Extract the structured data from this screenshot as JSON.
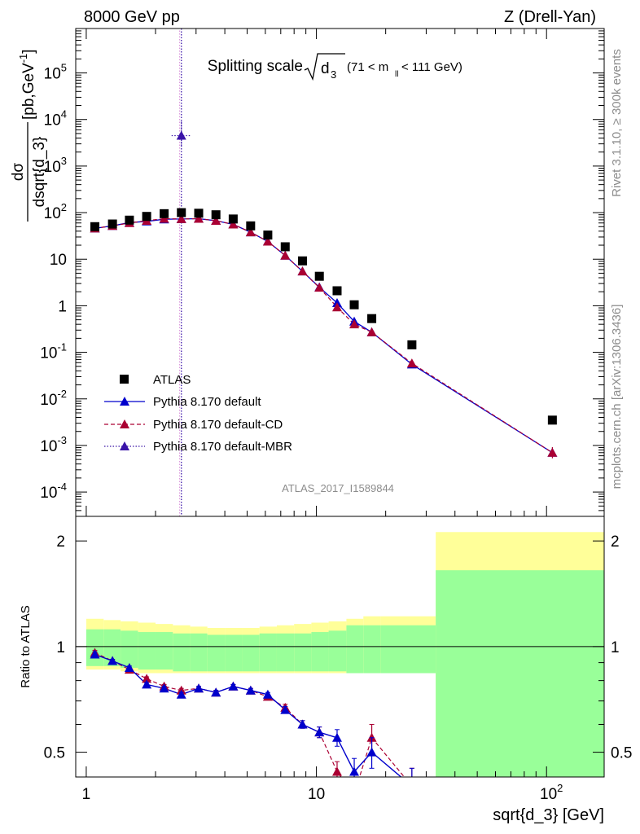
{
  "header": {
    "left": "8000 GeV pp",
    "right": "Z (Drell-Yan)"
  },
  "side_labels": {
    "rivet": "Rivet 3.1.10, ≥ 300k events",
    "ref": "mcplots.cern.ch [arXiv:1306.3436]"
  },
  "plot_title": {
    "main": "Splitting scale",
    "sym": "d",
    "sub": "3",
    "cut": "(71 < m",
    "cut_sub": "ll",
    "cut_end": " < 111 GeV)"
  },
  "analysis_id": "ATLAS_2017_I1589844",
  "y_axis_upper": {
    "numer": "dσ",
    "denom": "dsqrt{d_3}",
    "unit": "[pb,GeV",
    "unit_sup": "-1",
    "unit_end": "]"
  },
  "y_axis_lower": "Ratio to ATLAS",
  "x_axis_label": "sqrt{d_3} [GeV]",
  "colors": {
    "data": "#000000",
    "default": "#0000cc",
    "cd": "#aa0033",
    "mbr": "#3a14a8",
    "band_inner": "#99ff99",
    "band_outer": "#ffff99"
  },
  "legend": [
    {
      "key": "data",
      "label": "ATLAS"
    },
    {
      "key": "default",
      "label": "Pythia 8.170 default"
    },
    {
      "key": "cd",
      "label": "Pythia 8.170 default-CD"
    },
    {
      "key": "mbr",
      "label": "Pythia 8.170 default-MBR"
    }
  ],
  "chart_data": [
    {
      "type": "scatter",
      "panel": "main",
      "x_scale": "log",
      "y_scale": "log",
      "xlim": [
        0.9,
        178
      ],
      "ylim": [
        3e-05,
        900000
      ],
      "x_ticks": [
        "1",
        "10",
        "10^2"
      ],
      "y_ticks": [
        "10^-4",
        "10^-3",
        "10^-2",
        "10^-1",
        "1",
        "10",
        "10^2",
        "10^3",
        "10^4",
        "10^5"
      ],
      "x": [
        1.09,
        1.3,
        1.54,
        1.83,
        2.18,
        2.59,
        3.08,
        3.66,
        4.35,
        5.18,
        6.15,
        7.32,
        8.7,
        10.3,
        12.3,
        14.6,
        17.4,
        26.0,
        106
      ],
      "series": [
        {
          "name": "ATLAS",
          "key": "data",
          "values": [
            50,
            57,
            69,
            83,
            95,
            100,
            97,
            90,
            73,
            52,
            33,
            18.5,
            9.2,
            4.3,
            2.1,
            1.05,
            0.53,
            0.145,
            0.0035
          ]
        },
        {
          "name": "Pythia 8.170 default",
          "key": "default",
          "values": [
            46,
            52,
            61,
            65,
            72,
            73,
            74,
            67,
            56,
            38,
            24,
            12,
            5.5,
            2.5,
            1.15,
            0.46,
            0.27,
            0.055,
            0.0007
          ]
        },
        {
          "name": "Pythia 8.170 default-CD",
          "key": "cd",
          "values": [
            46,
            52,
            60,
            67,
            74,
            73,
            74,
            67,
            56,
            38,
            24,
            12,
            5.5,
            2.45,
            0.93,
            0.4,
            0.27,
            0.058,
            0.0007
          ]
        },
        {
          "name": "Pythia 8.170 default-MBR",
          "key": "mbr",
          "points": [
            [
              2.59,
              4500
            ]
          ],
          "error_band": [
            2500,
            9000
          ]
        }
      ]
    },
    {
      "type": "line",
      "panel": "ratio",
      "x_scale": "log",
      "y_scale": "log",
      "xlim": [
        0.9,
        178
      ],
      "ylim": [
        0.425,
        2.35
      ],
      "y_ticks": [
        "0.5",
        "1",
        "2"
      ],
      "reference_line": 1,
      "uncertainty_band": {
        "edges": [
          1.0,
          1.19,
          1.41,
          1.68,
          2.0,
          2.38,
          2.83,
          3.36,
          4.0,
          4.76,
          5.66,
          6.73,
          8.0,
          9.51,
          11.3,
          13.5,
          16.0,
          19.0,
          33.0,
          178
        ],
        "inner_lo": [
          0.88,
          0.88,
          0.87,
          0.86,
          0.86,
          0.85,
          0.85,
          0.85,
          0.85,
          0.85,
          0.85,
          0.85,
          0.85,
          0.85,
          0.85,
          0.84,
          0.84,
          0.84,
          0.37
        ],
        "inner_hi": [
          1.12,
          1.12,
          1.11,
          1.1,
          1.1,
          1.09,
          1.09,
          1.08,
          1.08,
          1.08,
          1.09,
          1.09,
          1.09,
          1.1,
          1.11,
          1.15,
          1.15,
          1.15,
          1.65
        ],
        "outer_lo": [
          0.86,
          0.86,
          0.85,
          0.84,
          0.84,
          0.84,
          0.84,
          0.84,
          0.84,
          0.84,
          0.84,
          0.84,
          0.84,
          0.84,
          0.84,
          0.84,
          0.84,
          0.84,
          0.35
        ],
        "outer_hi": [
          1.2,
          1.19,
          1.18,
          1.17,
          1.16,
          1.15,
          1.14,
          1.13,
          1.13,
          1.13,
          1.14,
          1.15,
          1.16,
          1.17,
          1.18,
          1.2,
          1.22,
          1.22,
          2.12
        ]
      },
      "x": [
        1.09,
        1.3,
        1.54,
        1.83,
        2.18,
        2.59,
        3.08,
        3.66,
        4.35,
        5.18,
        6.15,
        7.32,
        8.7,
        10.3,
        12.3,
        14.6,
        17.4,
        26.0
      ],
      "series": [
        {
          "name": "Pythia 8.170 default",
          "key": "default",
          "values": [
            0.95,
            0.91,
            0.87,
            0.78,
            0.76,
            0.73,
            0.76,
            0.74,
            0.77,
            0.75,
            0.73,
            0.66,
            0.6,
            0.57,
            0.55,
            0.44,
            0.5,
            0.4
          ],
          "errors": [
            0.015,
            0.01,
            0.01,
            0.01,
            0.01,
            0.01,
            0.01,
            0.01,
            0.01,
            0.01,
            0.01,
            0.015,
            0.015,
            0.02,
            0.03,
            0.04,
            0.05,
            0.05
          ]
        },
        {
          "name": "Pythia 8.170 default-CD",
          "key": "cd",
          "values": [
            0.96,
            0.91,
            0.86,
            0.81,
            0.77,
            0.75,
            0.76,
            0.74,
            0.77,
            0.75,
            0.72,
            0.67,
            0.6,
            0.57,
            0.44,
            0.38,
            0.55,
            0.4
          ],
          "errors": [
            0.015,
            0.01,
            0.01,
            0.01,
            0.01,
            0.01,
            0.01,
            0.01,
            0.01,
            0.01,
            0.01,
            0.015,
            0.015,
            0.02,
            0.03,
            0.04,
            0.05,
            0.05
          ]
        }
      ]
    }
  ]
}
